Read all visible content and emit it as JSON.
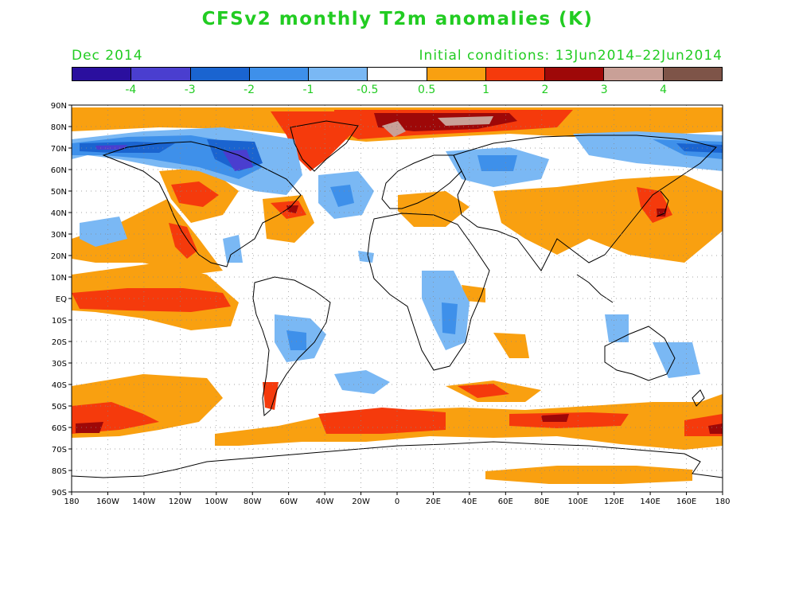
{
  "title": "CFSv2 monthly T2m anomalies (K)",
  "period": "Dec 2014",
  "initial_conditions": "Initial conditions: 13Jun2014–22Jun2014",
  "colorbar": {
    "colors": [
      "#2a0f9e",
      "#4a3ecf",
      "#1a64d0",
      "#3e90ea",
      "#7ab8f4",
      "#ffffff",
      "#f9a010",
      "#f53a0c",
      "#9e0808",
      "#c9a097",
      "#7e5448"
    ],
    "labels": [
      "-4",
      "-3",
      "-2",
      "-1",
      "-0.5",
      "0.5",
      "1",
      "2",
      "3",
      "4"
    ]
  },
  "map": {
    "lat_labels": [
      "90N",
      "80N",
      "70N",
      "60N",
      "50N",
      "40N",
      "30N",
      "20N",
      "10N",
      "EQ",
      "10S",
      "20S",
      "30S",
      "40S",
      "50S",
      "60S",
      "70S",
      "80S",
      "90S"
    ],
    "lon_labels": [
      "180",
      "160W",
      "140W",
      "120W",
      "100W",
      "80W",
      "60W",
      "40W",
      "20W",
      "0",
      "20E",
      "40E",
      "60E",
      "80E",
      "100E",
      "120E",
      "140E",
      "160E",
      "180"
    ]
  }
}
